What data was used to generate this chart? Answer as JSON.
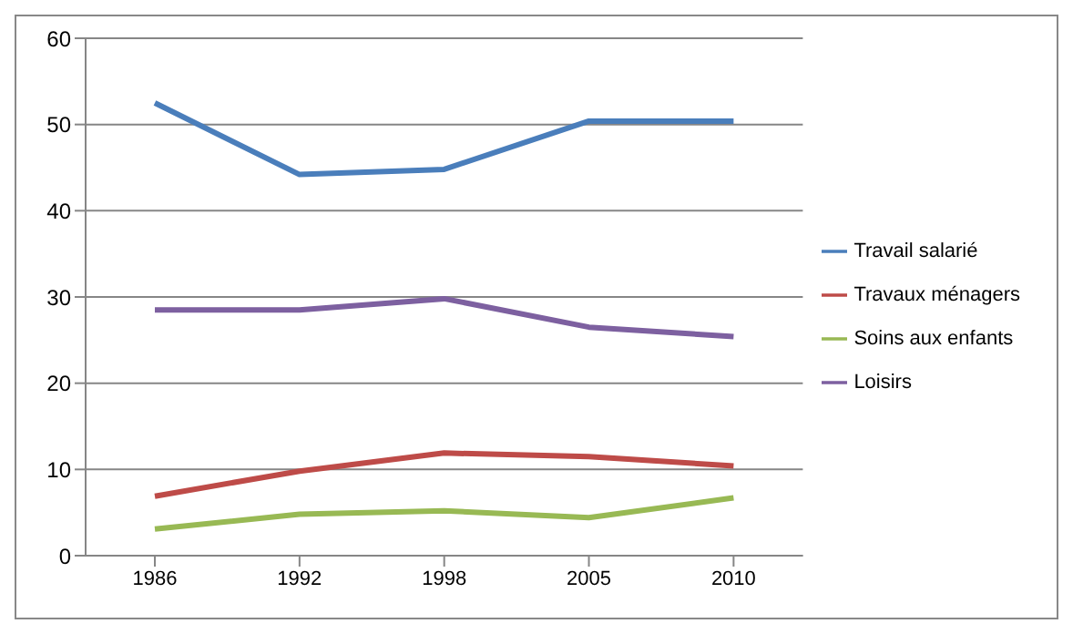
{
  "chart_data": {
    "type": "line",
    "categories": [
      "1986",
      "1992",
      "1998",
      "2005",
      "2010"
    ],
    "series": [
      {
        "name": "Travail salarié",
        "color": "#4a7ebb",
        "values": [
          52.5,
          44.2,
          44.8,
          50.4,
          50.4
        ]
      },
      {
        "name": "Travaux ménagers",
        "color": "#be4b48",
        "values": [
          6.9,
          9.8,
          11.9,
          11.5,
          10.4
        ]
      },
      {
        "name": "Soins aux enfants",
        "color": "#98b954",
        "values": [
          3.1,
          4.8,
          5.2,
          4.4,
          6.7
        ]
      },
      {
        "name": "Loisirs",
        "color": "#7d60a0",
        "values": [
          28.5,
          28.5,
          29.8,
          26.5,
          25.4
        ]
      }
    ],
    "ylim": [
      0,
      60
    ],
    "yticks": [
      0,
      10,
      20,
      30,
      40,
      50,
      60
    ],
    "grid": "y",
    "legend": "right",
    "marker": "none",
    "line_style": "solid"
  }
}
